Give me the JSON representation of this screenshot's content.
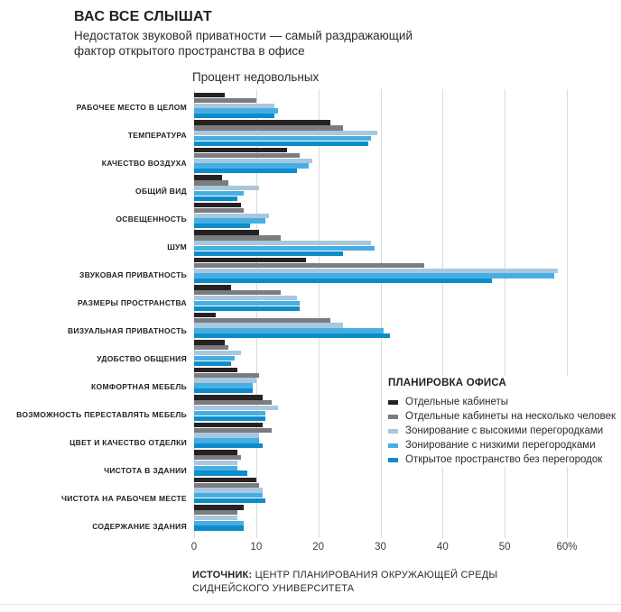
{
  "header": {
    "title": "ВАС ВСЕ СЛЫШАТ",
    "subtitle_line1": "Недостаток звуковой приватности — самый раздражающий",
    "subtitle_line2": "фактор открытого пространства в офисе"
  },
  "chart_data": {
    "type": "bar",
    "orientation": "horizontal",
    "title": "Процент недовольных",
    "xlabel": "",
    "ylabel": "",
    "xlim": [
      0,
      60
    ],
    "x_ticks": [
      "0",
      "10",
      "20",
      "30",
      "40",
      "50",
      "60%"
    ],
    "x_tick_values": [
      0,
      10,
      20,
      30,
      40,
      50,
      60
    ],
    "grid": true,
    "gridline_color": "#d9dadb",
    "legend_title": "ПЛАНИРОВКА ОФИСА",
    "legend_position": "right-middle",
    "categories": [
      "РАБОЧЕЕ МЕСТО В ЦЕЛОМ",
      "ТЕМПЕРАТУРА",
      "КАЧЕСТВО ВОЗДУХА",
      "ОБЩИЙ ВИД",
      "ОСВЕЩЕННОСТЬ",
      "ШУМ",
      "ЗВУКОВАЯ ПРИВАТНОСТЬ",
      "РАЗМЕРЫ ПРОСТРАНСТВА",
      "ВИЗУАЛЬНАЯ ПРИВАТНОСТЬ",
      "УДОБСТВО ОБЩЕНИЯ",
      "КОМФОРТНАЯ МЕБЕЛЬ",
      "ВОЗМОЖНОСТЬ ПЕРЕСТАВЛЯТЬ МЕБЕЛЬ",
      "ЦВЕТ И КАЧЕСТВО ОТДЕЛКИ",
      "ЧИСТОТА В ЗДАНИИ",
      "ЧИСТОТА НА РАБОЧЕМ МЕСТЕ",
      "СОДЕРЖАНИЕ ЗДАНИЯ"
    ],
    "series": [
      {
        "name": "Отдельные кабинеты",
        "color": "#262223",
        "values": [
          5,
          22,
          15,
          4.5,
          7.5,
          10.5,
          18,
          6,
          3.5,
          5,
          7,
          11,
          11,
          7,
          10,
          8
        ]
      },
      {
        "name": "Отдельные кабинеты на несколько человек",
        "color": "#7b7c7f",
        "values": [
          10,
          24,
          17,
          5.5,
          8,
          14,
          37,
          14,
          22,
          5.5,
          10.5,
          12.5,
          12.5,
          7.5,
          10.5,
          7
        ]
      },
      {
        "name": "Зонирование с высокими перегородками",
        "color": "#a9c7dd",
        "values": [
          13,
          29.5,
          19,
          10.5,
          12,
          28.5,
          58.5,
          16.5,
          24,
          7.5,
          10,
          13.5,
          10.5,
          7,
          11,
          7
        ]
      },
      {
        "name": "Зонирование с низкими перегородками",
        "color": "#45afe4",
        "values": [
          13.5,
          28.5,
          18.5,
          8,
          11.5,
          29,
          58,
          17,
          30.5,
          6.5,
          9.5,
          11.5,
          10.5,
          7,
          11,
          8
        ]
      },
      {
        "name": "Открытое пространство без перегородок",
        "color": "#0d8cc9",
        "values": [
          13,
          28,
          16.5,
          7,
          9,
          24,
          48,
          17,
          31.5,
          6,
          9.5,
          11.5,
          11,
          8.5,
          11.5,
          8
        ]
      }
    ]
  },
  "source": {
    "label": "ИСТОЧНИК:",
    "line1": "ЦЕНТР ПЛАНИРОВАНИЯ ОКРУЖАЮЩЕЙ СРЕДЫ",
    "line2": "СИДНЕЙСКОГО УНИВЕРСИТЕТА"
  }
}
